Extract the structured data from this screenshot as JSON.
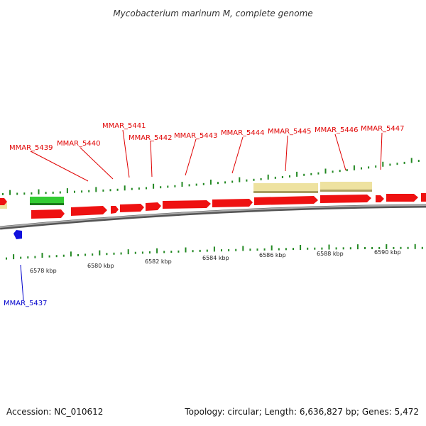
{
  "title": "Mycobacterium marinum M, complete genome",
  "accession": "Accession: NC_010612",
  "summary": "Topology: circular; Length: 6,636,827 bp; Genes: 5,472",
  "colors": {
    "backbone": "#777777",
    "cds_plus": "#ee1111",
    "cds_minus": "#1111dd",
    "rna": "#33cc33",
    "feature": "#eee2a0",
    "tick": "#228822",
    "label_plus": "#e00000",
    "label_minus": "#0000cc"
  },
  "scale": {
    "unit": "kbp",
    "major_ticks": [
      {
        "label": "6578 kbp"
      },
      {
        "label": "6580 kbp"
      },
      {
        "label": "6582 kbp"
      },
      {
        "label": "6584 kbp"
      },
      {
        "label": "6586 kbp"
      },
      {
        "label": "6588 kbp"
      },
      {
        "label": "6590 kbp"
      }
    ]
  },
  "genes": {
    "labeled": [
      {
        "name": "MMAR_5437",
        "strand": "minus"
      },
      {
        "name": "MMAR_5439",
        "strand": "plus"
      },
      {
        "name": "MMAR_5440",
        "strand": "plus"
      },
      {
        "name": "MMAR_5441",
        "strand": "plus"
      },
      {
        "name": "MMAR_5442",
        "strand": "plus"
      },
      {
        "name": "MMAR_5443",
        "strand": "plus"
      },
      {
        "name": "MMAR_5444",
        "strand": "plus"
      },
      {
        "name": "MMAR_5445",
        "strand": "plus"
      },
      {
        "name": "MMAR_5446",
        "strand": "plus"
      },
      {
        "name": "MMAR_5447",
        "strand": "plus"
      }
    ]
  }
}
